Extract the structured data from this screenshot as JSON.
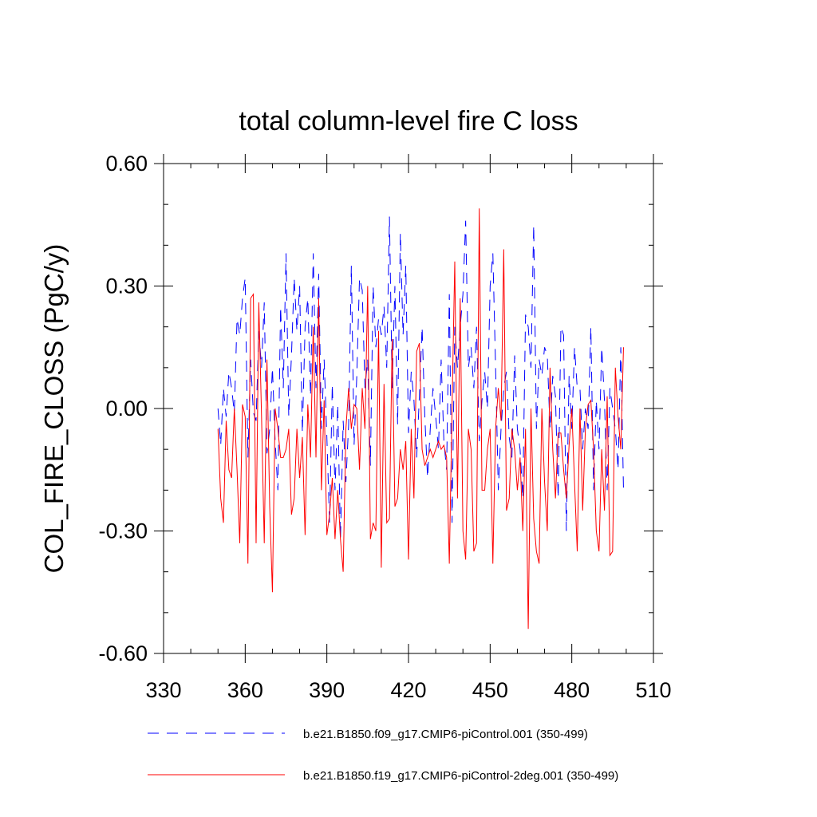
{
  "chart_data": {
    "type": "line",
    "title": "total column-level fire C loss",
    "ylabel": "COL_FIRE_CLOSS  (PgC/y)",
    "xlabel": "",
    "xlim": [
      330,
      510
    ],
    "ylim": [
      -0.6,
      0.6
    ],
    "xticks": [
      "330",
      "360",
      "390",
      "420",
      "450",
      "480",
      "510"
    ],
    "xtick_values": [
      330,
      360,
      390,
      420,
      450,
      480,
      510
    ],
    "yticks": [
      "0.60",
      "0.30",
      "0.00",
      "-0.30",
      "-0.60"
    ],
    "ytick_values": [
      0.6,
      0.3,
      0.0,
      -0.3,
      -0.6
    ],
    "grid": false,
    "legend_placement": "bottom",
    "series": [
      {
        "name": "b.e21.B1850.f09_g17.CMIP6-piControl.001 (350-499)",
        "color": "#0000ff",
        "style": "dashed",
        "x_start": 350,
        "x_step": 1,
        "values": [
          0.0,
          -0.09,
          0.05,
          -0.02,
          0.09,
          0.05,
          -0.01,
          0.22,
          0.18,
          0.27,
          0.32,
          -0.12,
          0.12,
          -0.01,
          -0.03,
          0.19,
          0.1,
          0.26,
          -0.11,
          -0.05,
          0.1,
          -0.08,
          -0.2,
          0.25,
          0.05,
          0.38,
          -0.02,
          0.13,
          0.32,
          0.19,
          0.3,
          -0.06,
          0.2,
          0.27,
          0.03,
          0.38,
          0.05,
          0.33,
          -0.05,
          0.12,
          -0.07,
          -0.28,
          0.06,
          -0.2,
          0.01,
          -0.32,
          -0.03,
          -0.18,
          -0.04,
          0.35,
          -0.09,
          0.08,
          0.32,
          0.29,
          0.05,
          0.12,
          -0.14,
          0.3,
          0.15,
          0.22,
          0.18,
          0.25,
          0.1,
          0.47,
          0.05,
          0.3,
          -0.04,
          0.43,
          0.18,
          0.35,
          -0.06,
          0.09,
          0.02,
          -0.12,
          0.03,
          0.2,
          -0.02,
          -0.17,
          -0.05,
          0.05,
          -0.02,
          -0.1,
          0.12,
          -0.08,
          -0.15,
          0.28,
          -0.28,
          0.2,
          0.1,
          0.2,
          0.28,
          0.46,
          0.1,
          0.15,
          0.05,
          0.2,
          -0.08,
          0.02,
          0.09,
          0.0,
          0.3,
          0.38,
          0.1,
          -0.2,
          -0.05,
          0.05,
          0.09,
          -0.07,
          -0.12,
          0.13,
          -0.05,
          -0.1,
          -0.22,
          0.23,
          0.2,
          0.1,
          0.45,
          -0.05,
          0.12,
          0.08,
          0.15,
          0.13,
          -0.05,
          0.08,
          0.03,
          -0.22,
          0.2,
          0.18,
          -0.3,
          0.08,
          -0.05,
          0.15,
          0.05,
          0.05,
          -0.1,
          0.0,
          -0.05,
          0.2,
          -0.2,
          0.02,
          -0.1,
          0.15,
          0.02,
          -0.2,
          0.05,
          0.0,
          -0.05,
          -0.15,
          0.15,
          -0.2
        ]
      },
      {
        "name": "b.e21.B1850.f19_g17.CMIP6-piControl-2deg.001 (350-499)",
        "color": "#ff0000",
        "style": "solid",
        "x_start": 350,
        "x_step": 1,
        "values": [
          -0.05,
          -0.22,
          -0.28,
          -0.03,
          -0.15,
          -0.17,
          0.0,
          -0.15,
          -0.33,
          0.01,
          -0.02,
          -0.38,
          0.27,
          0.28,
          -0.33,
          0.26,
          -0.02,
          -0.33,
          0.12,
          -0.24,
          -0.45,
          0.0,
          -0.05,
          -0.12,
          -0.12,
          -0.1,
          -0.05,
          -0.26,
          -0.22,
          -0.05,
          -0.17,
          -0.07,
          -0.31,
          0.01,
          -0.12,
          0.2,
          -0.12,
          0.27,
          -0.2,
          0.02,
          -0.31,
          -0.26,
          -0.17,
          -0.32,
          -0.2,
          -0.32,
          -0.4,
          -0.05,
          0.05,
          -0.05,
          0.01,
          0.0,
          -0.15,
          0.05,
          -0.05,
          0.3,
          -0.32,
          -0.28,
          -0.3,
          0.19,
          -0.39,
          0.06,
          -0.28,
          -0.27,
          0.17,
          -0.24,
          -0.22,
          -0.1,
          -0.15,
          -0.08,
          -0.37,
          -0.05,
          -0.22,
          0.14,
          0.16,
          -0.1,
          -0.14,
          -0.12,
          -0.1,
          -0.12,
          -0.1,
          -0.08,
          -0.1,
          -0.09,
          -0.12,
          -0.38,
          0.0,
          0.36,
          -0.22,
          0.27,
          -0.3,
          -0.37,
          -0.05,
          -0.1,
          -0.35,
          -0.33,
          0.49,
          -0.2,
          -0.2,
          -0.1,
          -0.05,
          -0.38,
          -0.05,
          0.05,
          -0.03,
          0.39,
          -0.25,
          -0.22,
          -0.05,
          -0.1,
          -0.2,
          -0.12,
          -0.3,
          -0.05,
          -0.54,
          0.0,
          -0.27,
          -0.35,
          -0.38,
          0.0,
          -0.18,
          -0.3,
          0.1,
          -0.1,
          -0.22,
          -0.06,
          -0.06,
          -0.15,
          -0.22,
          -0.09,
          0.0,
          -0.18,
          -0.35,
          0.0,
          -0.25,
          -0.05,
          0.01,
          0.02,
          -0.1,
          -0.3,
          -0.35,
          -0.1,
          -0.25,
          0.03,
          -0.36,
          -0.35,
          0.1,
          -0.02,
          -0.1,
          0.15
        ]
      }
    ]
  }
}
